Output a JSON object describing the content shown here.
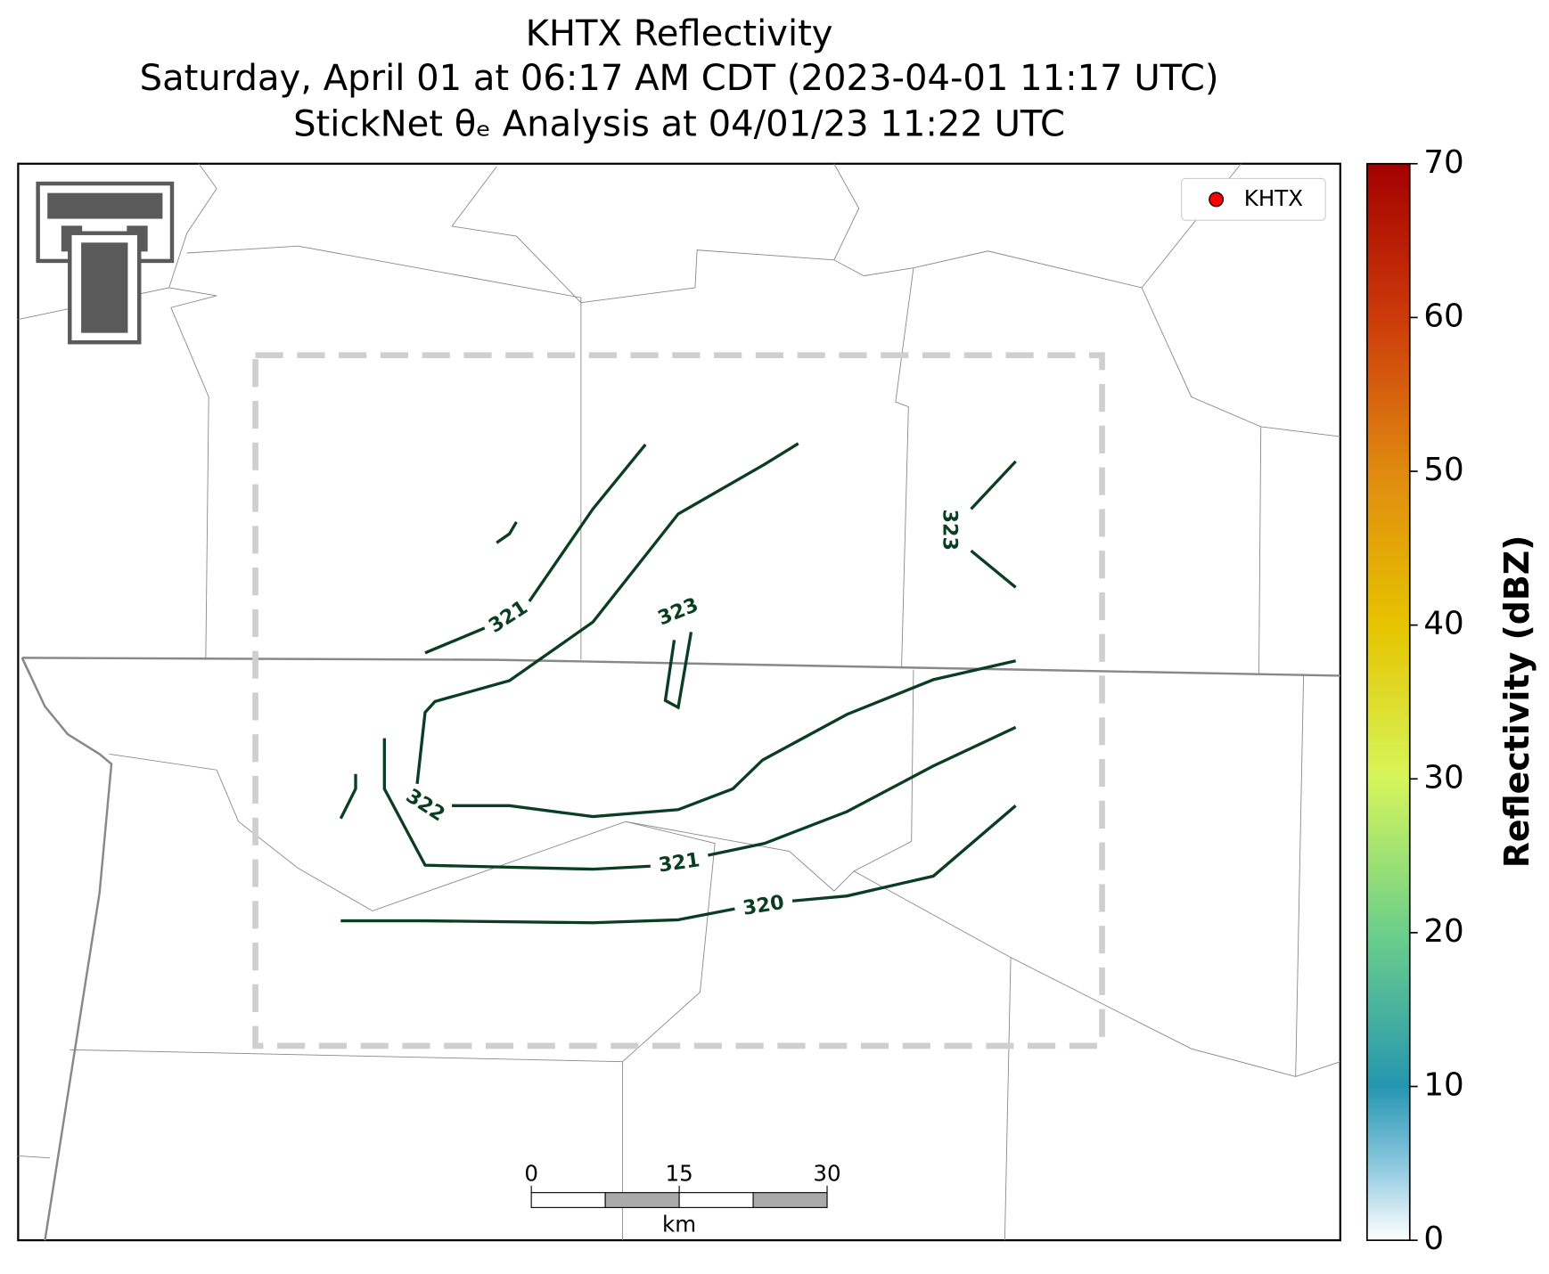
{
  "header": {
    "title": "KHTX Reflectivity",
    "subtitle": "Saturday, April 01 at 06:17 AM CDT (2023-04-01 11:17 UTC)",
    "analysis": "StickNet θₑ Analysis at 04/01/23 11:22 UTC"
  },
  "legend": {
    "label": "KHTX",
    "color": "#ff0000"
  },
  "contour_labels": [
    "321",
    "323",
    "322",
    "321",
    "320",
    "323"
  ],
  "colorbar": {
    "label": "Reflectivity (dBZ)",
    "lim": [
      0,
      70
    ],
    "ticks": [
      0,
      10,
      20,
      30,
      40,
      50,
      60,
      70
    ]
  },
  "scale_bar": {
    "ticks": [
      0,
      15,
      30
    ],
    "unit": "km"
  }
}
